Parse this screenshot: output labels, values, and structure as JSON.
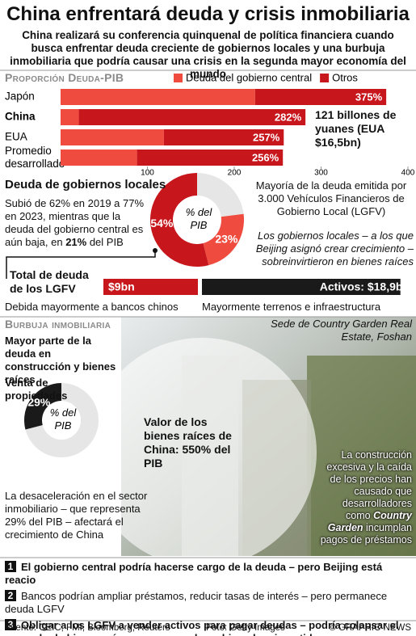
{
  "header": {
    "title": "China enfrentará deuda y crisis inmobiliaria",
    "subtitle": "China realizará su conferencia quinquenal de política financiera cuando busca enfrentar deuda creciente de gobiernos locales y una burbuja inmobiliaria que podría causar una crisis en la segunda mayor economía del mundo"
  },
  "debt_chart": {
    "type": "bar",
    "title": "Proporción Deuda-PIB",
    "categories": [
      "Japón",
      "China",
      "EUA",
      "Promedio desarrollado"
    ],
    "series": [
      {
        "name": "Deuda del gobierno central",
        "color": "#ef4b3f",
        "values": [
          224,
          21,
          119,
          88
        ],
        "value_labels": [
          null,
          "21%",
          null,
          null
        ]
      },
      {
        "name": "Otros",
        "color": "#c8161d",
        "values": [
          151,
          261,
          138,
          168
        ]
      }
    ],
    "totals": [
      375,
      282,
      257,
      256
    ],
    "total_labels": [
      "375%",
      "282%",
      "257%",
      "256%"
    ],
    "xlim": [
      0,
      400
    ],
    "xticks": [
      100,
      200,
      300,
      400
    ],
    "note": "121 billones de yuanes (EUA $16,5bn)"
  },
  "local_debt": {
    "title": "Deuda de gobiernos locales",
    "text_before": "Subió de 62% en 2019 a 77% en 2023, mientras que la deuda del gobierno central es aún baja, en ",
    "text_highlight": "21%",
    "text_after": " del PIB",
    "pie": {
      "type": "donut",
      "center_label": "% del PIB",
      "values": [
        54,
        23
      ],
      "value_labels": [
        "54%",
        "23%"
      ],
      "colors": [
        "#c8161d",
        "#ef4b3f"
      ]
    },
    "lgfv_note": "Mayoría de la deuda emitida por 3.000 Vehículos Financieros de Gobierno Local (LGFV)",
    "lgfv_comment": "Los gobiernos locales – a los que Beijing asignó crear crecimiento – sobreinvirtieron en bienes raíces"
  },
  "lgfv": {
    "title": "Total de deuda de los LGFV",
    "debt": 9,
    "debt_label": "$9bn",
    "assets": 18.9,
    "assets_label": "Activos: $18,9bn",
    "debt_note": "Debida mayormente a bancos chinos",
    "assets_note": "Mayormente terrenos e infraestructura"
  },
  "property": {
    "title": "Burbuja inmobiliaria",
    "caption": "Sede de Country Garden Real Estate, Foshan",
    "heading": "Mayor parte de la deuda en construcción y bienes raíces",
    "sales_label": "Venta de propiedades",
    "pie": {
      "type": "donut",
      "center_label": "% del PIB",
      "values": [
        29
      ],
      "value_labels": [
        "29%"
      ],
      "colors": [
        "#1a1a1a"
      ]
    },
    "value_text": "Valor de los bienes raíces de China: 550% del PIB",
    "slowdown": "La desaceleración en el sector inmobiliario – que representa 29% del PIB – afectará el crecimiento de China",
    "photo_text_before": "La construcción excesiva y la caída de los precios han causado que desarrolladores como ",
    "photo_text_highlight": "Country Garden",
    "photo_text_after": " incumplan pagos de préstamos"
  },
  "options": [
    {
      "number": "1",
      "text": "El gobierno central podría hacerse cargo de la deuda – pero Beijing está reacio"
    },
    {
      "number": "2",
      "text": "Bancos podrían ampliar préstamos, reducir tasas de interés – pero permanece deuda LGFV"
    },
    {
      "number": "3",
      "text": "Obligar a los LGFV a vender activos para pagar deudas – podría colapsar el mercado de bienes raíces en que muchos chinos han invertido"
    }
  ],
  "footer": {
    "source": "Fuente: CEIC, FMI, Bloomberg, Reuters",
    "photo": "Foto: Getty Images",
    "credit": "© GRAPHIC NEWS"
  }
}
